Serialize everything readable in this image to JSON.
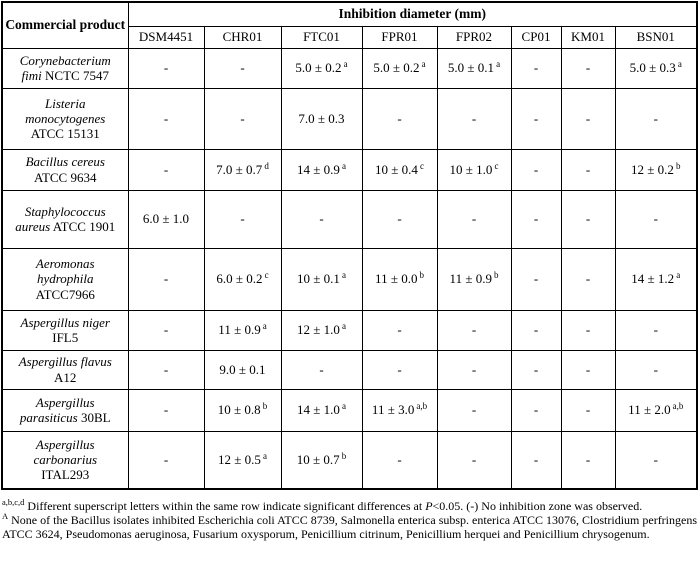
{
  "table": {
    "corner_header": "Commercial product",
    "group_header": "Inhibition diameter (mm)",
    "columns": [
      "DSM4451",
      "CHR01",
      "FTC01",
      "FPR01",
      "FPR02",
      "CP01",
      "KM01",
      "BSN01"
    ],
    "rows": [
      {
        "species": "Corynebacterium fimi",
        "strain": "NCTC 7547",
        "cells": [
          {
            "text": "-"
          },
          {
            "text": "-"
          },
          {
            "text": "5.0 ± 0.2",
            "sup": "a"
          },
          {
            "text": "5.0 ± 0.2",
            "sup": "a"
          },
          {
            "text": "5.0 ± 0.1",
            "sup": "a"
          },
          {
            "text": "-"
          },
          {
            "text": "-"
          },
          {
            "text": "5.0 ± 0.3",
            "sup": "a"
          }
        ]
      },
      {
        "species": "Listeria monocytogenes",
        "strain": "ATCC 15131",
        "cells": [
          {
            "text": "-"
          },
          {
            "text": "-"
          },
          {
            "text": "7.0 ± 0.3"
          },
          {
            "text": "-"
          },
          {
            "text": "-"
          },
          {
            "text": "-"
          },
          {
            "text": "-"
          },
          {
            "text": "-"
          }
        ]
      },
      {
        "species": "Bacillus cereus",
        "strain": "ATCC 9634",
        "cells": [
          {
            "text": "-"
          },
          {
            "text": "7.0 ± 0.7",
            "sup": "d"
          },
          {
            "text": "14 ± 0.9",
            "sup": "a"
          },
          {
            "text": "10 ± 0.4",
            "sup": "c"
          },
          {
            "text": "10 ± 1.0",
            "sup": "c"
          },
          {
            "text": "-"
          },
          {
            "text": "-"
          },
          {
            "text": "12 ± 0.2",
            "sup": "b"
          }
        ]
      },
      {
        "species": "Staphylococcus aureus",
        "strain": "ATCC 1901",
        "cells": [
          {
            "text": "6.0 ± 1.0"
          },
          {
            "text": "-"
          },
          {
            "text": "-"
          },
          {
            "text": "-"
          },
          {
            "text": "-"
          },
          {
            "text": "-"
          },
          {
            "text": "-"
          },
          {
            "text": "-"
          }
        ]
      },
      {
        "species": "Aeromonas hydrophila",
        "strain": "ATCC7966",
        "cells": [
          {
            "text": "-"
          },
          {
            "text": "6.0 ± 0.2",
            "sup": "c"
          },
          {
            "text": "10 ± 0.1",
            "sup": "a"
          },
          {
            "text": "11 ± 0.0",
            "sup": "b"
          },
          {
            "text": "11 ± 0.9",
            "sup": "b"
          },
          {
            "text": "-"
          },
          {
            "text": "-"
          },
          {
            "text": "14 ± 1.2",
            "sup": "a"
          }
        ]
      },
      {
        "species": "Aspergillus niger",
        "strain": "IFL5",
        "cells": [
          {
            "text": "-"
          },
          {
            "text": "11 ± 0.9",
            "sup": "a"
          },
          {
            "text": "12 ± 1.0",
            "sup": "a"
          },
          {
            "text": "-"
          },
          {
            "text": "-"
          },
          {
            "text": "-"
          },
          {
            "text": "-"
          },
          {
            "text": "-"
          }
        ]
      },
      {
        "species": "Aspergillus flavus",
        "strain": "A12",
        "cells": [
          {
            "text": "-"
          },
          {
            "text": "9.0 ± 0.1"
          },
          {
            "text": "-"
          },
          {
            "text": "-"
          },
          {
            "text": "-"
          },
          {
            "text": "-"
          },
          {
            "text": "-"
          },
          {
            "text": "-"
          }
        ]
      },
      {
        "species": "Aspergillus parasiticus",
        "strain": "30BL",
        "cells": [
          {
            "text": "-"
          },
          {
            "text": "10 ± 0.8",
            "sup": "b"
          },
          {
            "text": "14 ± 1.0",
            "sup": "a"
          },
          {
            "text": "11 ± 3.0",
            "sup": "a,b"
          },
          {
            "text": "-"
          },
          {
            "text": "-"
          },
          {
            "text": "-"
          },
          {
            "text": "11 ± 2.0",
            "sup": "a,b"
          }
        ]
      },
      {
        "species": "Aspergillus carbonarius",
        "strain": "ITAL293",
        "cells": [
          {
            "text": "-"
          },
          {
            "text": "12 ± 0.5",
            "sup": "a"
          },
          {
            "text": "10 ± 0.7",
            "sup": "b"
          },
          {
            "text": "-"
          },
          {
            "text": "-"
          },
          {
            "text": "-"
          },
          {
            "text": "-"
          },
          {
            "text": "-"
          }
        ]
      }
    ]
  },
  "footnotes": {
    "note1": {
      "sup": "a,b,c,d",
      "pre": "Different superscript letters within the same row indicate significant differences at ",
      "p": "P",
      "post": "<0.05. (-) No inhibition zone was observed."
    },
    "note2": {
      "sup": "A",
      "text": "None of the Bacillus isolates inhibited Escherichia coli ATCC 8739, Salmonella enterica subsp. enterica ATCC 13076, Clostridium perfringens ATCC 3624, Pseudomonas aeruginosa, Fusarium oxysporum, Penicillium citrinum, Penicillium herquei and Penicillium chrysogenum."
    }
  }
}
